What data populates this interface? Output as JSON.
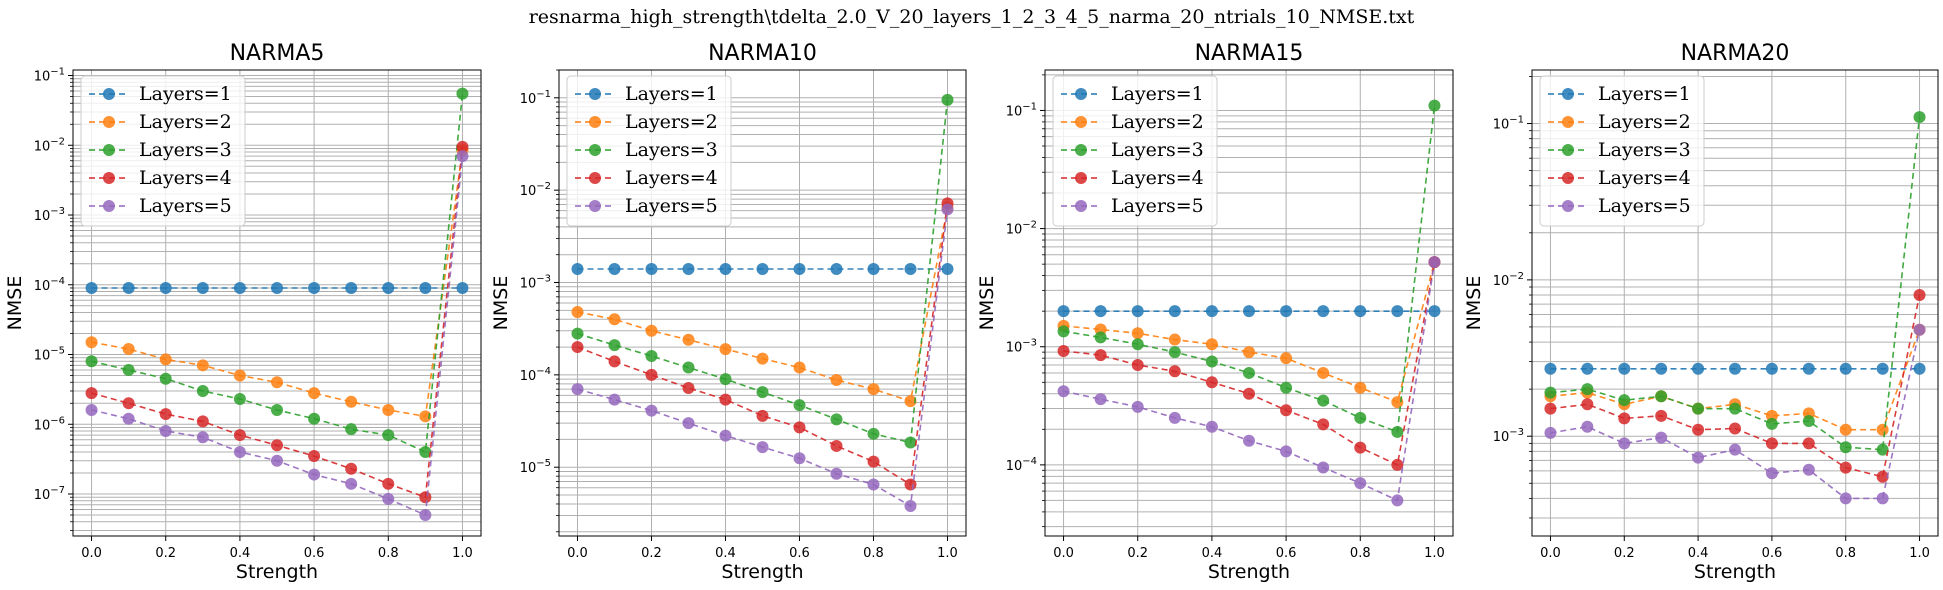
{
  "figure_title": "resnarma_high_strength\\tdelta_2.0_V_20_layers_1_2_3_4_5_narma_20_ntrials_10_NMSE.txt",
  "colors": [
    "#1f77b4",
    "#ff7f0e",
    "#2ca02c",
    "#d62728",
    "#9467bd"
  ],
  "chart_data": [
    {
      "type": "line",
      "title": "NARMA5",
      "xlabel": "Strength",
      "ylabel": "NMSE",
      "yscale": "log",
      "xlim": [
        -0.05,
        1.05
      ],
      "ylim": [
        2.5e-08,
        0.12
      ],
      "y_ticks": [
        1e-07,
        1e-06,
        1e-05,
        0.0001,
        0.001,
        0.01,
        0.1
      ],
      "y_tick_labels": [
        "10^-7",
        "10^-6",
        "10^-5",
        "10^-4",
        "10^-3",
        "10^-2",
        "10^-1"
      ],
      "x_ticks": [
        0.0,
        0.2,
        0.4,
        0.6,
        0.8,
        1.0
      ],
      "x_tick_labels": [
        "0.0",
        "0.2",
        "0.4",
        "0.6",
        "0.8",
        "1.0"
      ],
      "grid": true,
      "legend_position": "top-left",
      "x": [
        0.0,
        0.1,
        0.2,
        0.3,
        0.4,
        0.5,
        0.6,
        0.7,
        0.8,
        0.9,
        1.0
      ],
      "series": [
        {
          "name": "Layers=1",
          "values": [
            9e-05,
            9e-05,
            9e-05,
            9e-05,
            9e-05,
            9e-05,
            9e-05,
            9e-05,
            9e-05,
            9e-05,
            9e-05
          ]
        },
        {
          "name": "Layers=2",
          "values": [
            1.5e-05,
            1.2e-05,
            8.5e-06,
            7e-06,
            5e-06,
            4e-06,
            2.8e-06,
            2.1e-06,
            1.6e-06,
            1.3e-06,
            0.0085
          ]
        },
        {
          "name": "Layers=3",
          "values": [
            8e-06,
            6e-06,
            4.5e-06,
            3e-06,
            2.3e-06,
            1.6e-06,
            1.2e-06,
            8.5e-07,
            7e-07,
            4e-07,
            0.055
          ]
        },
        {
          "name": "Layers=4",
          "values": [
            2.8e-06,
            2e-06,
            1.4e-06,
            1.1e-06,
            7e-07,
            5e-07,
            3.5e-07,
            2.3e-07,
            1.4e-07,
            9e-08,
            0.0095
          ]
        },
        {
          "name": "Layers=5",
          "values": [
            1.6e-06,
            1.2e-06,
            8e-07,
            6.5e-07,
            4e-07,
            3e-07,
            1.9e-07,
            1.4e-07,
            8.5e-08,
            5e-08,
            0.007
          ]
        }
      ]
    },
    {
      "type": "line",
      "title": "NARMA10",
      "xlabel": "Strength",
      "ylabel": "NMSE",
      "yscale": "log",
      "xlim": [
        -0.05,
        1.05
      ],
      "ylim": [
        1.8e-06,
        0.2
      ],
      "y_ticks": [
        1e-05,
        0.0001,
        0.001,
        0.01,
        0.1
      ],
      "y_tick_labels": [
        "10^-5",
        "10^-4",
        "10^-3",
        "10^-2",
        "10^-1"
      ],
      "x_ticks": [
        0.0,
        0.2,
        0.4,
        0.6,
        0.8,
        1.0
      ],
      "x_tick_labels": [
        "0.0",
        "0.2",
        "0.4",
        "0.6",
        "0.8",
        "1.0"
      ],
      "grid": true,
      "legend_position": "top-left",
      "x": [
        0.0,
        0.1,
        0.2,
        0.3,
        0.4,
        0.5,
        0.6,
        0.7,
        0.8,
        0.9,
        1.0
      ],
      "series": [
        {
          "name": "Layers=1",
          "values": [
            0.0014,
            0.0014,
            0.0014,
            0.0014,
            0.0014,
            0.0014,
            0.0014,
            0.0014,
            0.0014,
            0.0014,
            0.0014
          ]
        },
        {
          "name": "Layers=2",
          "values": [
            0.00048,
            0.0004,
            0.0003,
            0.00024,
            0.00019,
            0.00015,
            0.00012,
            8.8e-05,
            7e-05,
            5.2e-05,
            0.0065
          ]
        },
        {
          "name": "Layers=3",
          "values": [
            0.00028,
            0.00021,
            0.00016,
            0.00012,
            9e-05,
            6.5e-05,
            4.7e-05,
            3.3e-05,
            2.3e-05,
            1.85e-05,
            0.095
          ]
        },
        {
          "name": "Layers=4",
          "values": [
            0.0002,
            0.00014,
            0.0001,
            7.2e-05,
            5.4e-05,
            3.6e-05,
            2.7e-05,
            1.7e-05,
            1.15e-05,
            6.5e-06,
            0.0072
          ]
        },
        {
          "name": "Layers=5",
          "values": [
            7e-05,
            5.4e-05,
            4.1e-05,
            3e-05,
            2.2e-05,
            1.65e-05,
            1.25e-05,
            8.5e-06,
            6.5e-06,
            3.8e-06,
            0.0062
          ]
        }
      ]
    },
    {
      "type": "line",
      "title": "NARMA15",
      "xlabel": "Strength",
      "ylabel": "NMSE",
      "yscale": "log",
      "xlim": [
        -0.05,
        1.05
      ],
      "ylim": [
        2.5e-05,
        0.22
      ],
      "y_ticks": [
        0.0001,
        0.001,
        0.01,
        0.1
      ],
      "y_tick_labels": [
        "10^-4",
        "10^-3",
        "10^-2",
        "10^-1"
      ],
      "x_ticks": [
        0.0,
        0.2,
        0.4,
        0.6,
        0.8,
        1.0
      ],
      "x_tick_labels": [
        "0.0",
        "0.2",
        "0.4",
        "0.6",
        "0.8",
        "1.0"
      ],
      "grid": true,
      "legend_position": "top-left",
      "x": [
        0.0,
        0.1,
        0.2,
        0.3,
        0.4,
        0.5,
        0.6,
        0.7,
        0.8,
        0.9,
        1.0
      ],
      "series": [
        {
          "name": "Layers=1",
          "values": [
            0.002,
            0.002,
            0.002,
            0.002,
            0.002,
            0.002,
            0.002,
            0.002,
            0.002,
            0.002,
            0.002
          ]
        },
        {
          "name": "Layers=2",
          "values": [
            0.0015,
            0.0014,
            0.0013,
            0.00115,
            0.00105,
            0.0009,
            0.0008,
            0.0006,
            0.00045,
            0.00034,
            0.0052
          ]
        },
        {
          "name": "Layers=3",
          "values": [
            0.00135,
            0.0012,
            0.00105,
            0.0009,
            0.00075,
            0.0006,
            0.00045,
            0.00035,
            0.00025,
            0.00019,
            0.11
          ]
        },
        {
          "name": "Layers=4",
          "values": [
            0.00092,
            0.00085,
            0.0007,
            0.00062,
            0.0005,
            0.0004,
            0.00029,
            0.00022,
            0.00014,
            0.0001,
            0.0052
          ]
        },
        {
          "name": "Layers=5",
          "values": [
            0.00042,
            0.00036,
            0.00031,
            0.00025,
            0.00021,
            0.00016,
            0.00013,
            9.5e-05,
            7e-05,
            5e-05,
            0.0052
          ]
        }
      ]
    },
    {
      "type": "line",
      "title": "NARMA20",
      "xlabel": "Strength",
      "ylabel": "NMSE",
      "yscale": "log",
      "xlim": [
        -0.05,
        1.05
      ],
      "ylim": [
        0.00023,
        0.22
      ],
      "y_ticks": [
        0.001,
        0.01,
        0.1
      ],
      "y_tick_labels": [
        "10^-3",
        "10^-2",
        "10^-1"
      ],
      "x_ticks": [
        0.0,
        0.2,
        0.4,
        0.6,
        0.8,
        1.0
      ],
      "x_tick_labels": [
        "0.0",
        "0.2",
        "0.4",
        "0.6",
        "0.8",
        "1.0"
      ],
      "grid": true,
      "legend_position": "top-left",
      "x": [
        0.0,
        0.1,
        0.2,
        0.3,
        0.4,
        0.5,
        0.6,
        0.7,
        0.8,
        0.9,
        1.0
      ],
      "series": [
        {
          "name": "Layers=1",
          "values": [
            0.0027,
            0.0027,
            0.0027,
            0.0027,
            0.0027,
            0.0027,
            0.0027,
            0.0027,
            0.0027,
            0.0027,
            0.0027
          ]
        },
        {
          "name": "Layers=2",
          "values": [
            0.0018,
            0.0019,
            0.0016,
            0.0018,
            0.0015,
            0.0016,
            0.00135,
            0.0014,
            0.0011,
            0.0011,
            0.0048
          ]
        },
        {
          "name": "Layers=3",
          "values": [
            0.0019,
            0.002,
            0.0017,
            0.0018,
            0.0015,
            0.0015,
            0.0012,
            0.00125,
            0.00085,
            0.00082,
            0.11
          ]
        },
        {
          "name": "Layers=4",
          "values": [
            0.0015,
            0.0016,
            0.0013,
            0.00135,
            0.0011,
            0.00112,
            0.0009,
            0.0009,
            0.00063,
            0.00055,
            0.008
          ]
        },
        {
          "name": "Layers=5",
          "values": [
            0.00105,
            0.00115,
            0.0009,
            0.00098,
            0.00073,
            0.00082,
            0.00058,
            0.00061,
            0.0004,
            0.0004,
            0.0048
          ]
        }
      ]
    }
  ]
}
